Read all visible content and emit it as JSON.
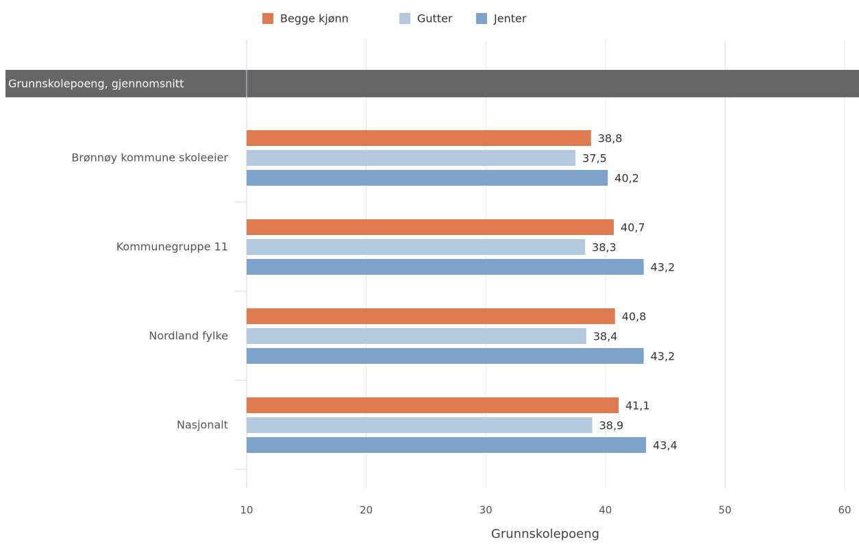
{
  "chart_data": {
    "type": "bar",
    "orientation": "horizontal",
    "panel_title": "Grunnskolepoeng, gjennomsnitt",
    "x_label": "Grunnskolepoeng",
    "categories": [
      "Brønnøy kommune skoleeier",
      "Kommunegruppe 11",
      "Nordland fylke",
      "Nasjonalt"
    ],
    "series": [
      {
        "name": "Begge kjønn",
        "color": "#e07b4f",
        "values": [
          38.8,
          40.7,
          40.8,
          41.1
        ],
        "value_labels": [
          "38,8",
          "40,7",
          "40,8",
          "41,1"
        ]
      },
      {
        "name": "Gutter",
        "color": "#b3cade",
        "values": [
          37.5,
          38.3,
          38.4,
          38.9
        ],
        "value_labels": [
          "37,5",
          "38,3",
          "38,4",
          "38,9"
        ]
      },
      {
        "name": "Jenter",
        "color": "#7ea3cb",
        "values": [
          40.2,
          43.2,
          43.2,
          43.4
        ],
        "value_labels": [
          "40,2",
          "43,2",
          "43,2",
          "43,4"
        ]
      }
    ],
    "xlim": [
      10,
      60
    ],
    "xticks": [
      10,
      20,
      30,
      40,
      50,
      60
    ],
    "grid": true,
    "legend": "top"
  }
}
